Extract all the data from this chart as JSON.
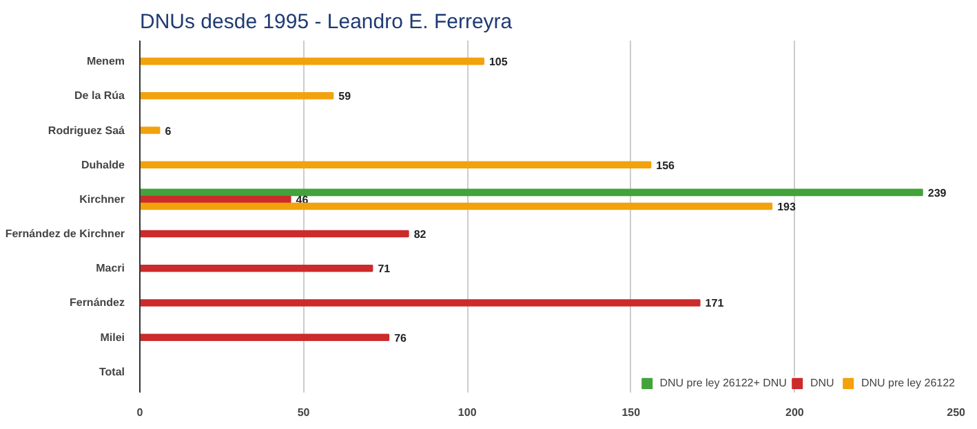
{
  "chart_data": {
    "type": "bar",
    "orientation": "horizontal",
    "title": "DNUs desde 1995 - Leandro E. Ferreyra",
    "categories": [
      "Menem",
      "De la Rúa",
      "Rodriguez Saá",
      "Duhalde",
      "Kirchner",
      "Fernández de Kirchner",
      "Macri",
      "Fernández",
      "Milei",
      "Total"
    ],
    "series": [
      {
        "name": "DNU pre ley 26122+ DNU",
        "color": "#43a33b",
        "values": [
          null,
          null,
          null,
          null,
          239,
          null,
          null,
          null,
          null,
          null
        ]
      },
      {
        "name": "DNU",
        "color": "#cc2b2b",
        "values": [
          null,
          null,
          null,
          null,
          46,
          82,
          71,
          171,
          76,
          null
        ]
      },
      {
        "name": "DNU pre ley 26122",
        "color": "#f2a20c",
        "values": [
          105,
          59,
          6,
          156,
          193,
          null,
          null,
          null,
          null,
          null
        ]
      }
    ],
    "xlim": [
      0,
      250
    ],
    "xticks": [
      0,
      50,
      100,
      150,
      200,
      250
    ],
    "grid": "x",
    "legend": "bottom",
    "data_labels": true
  }
}
